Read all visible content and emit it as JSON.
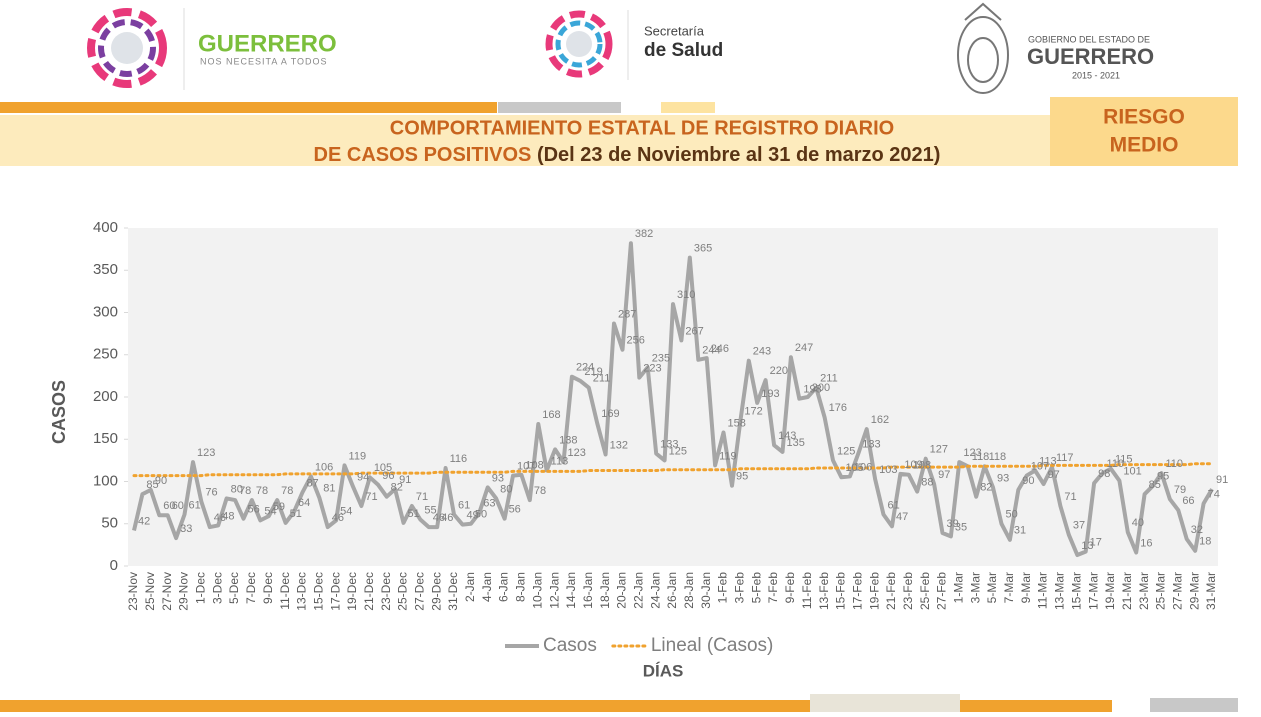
{
  "header": {
    "left_name": "GUERRERO",
    "left_slogan": "NOS NECESITA A TODOS",
    "center_line1": "Secretaría",
    "center_line2": "de Salud",
    "right_line1": "GOBIERNO DEL ESTADO DE",
    "right_line2": "GUERRERO",
    "right_years": "2015 - 2021"
  },
  "banner": {
    "title_line1": "COMPORTAMIENTO ESTATAL DE REGISTRO DIARIO",
    "title_line2": "DE CASOS POSITIVOS",
    "title_range": "(Del 23 de Noviembre al 31 de marzo 2021)",
    "badge_line1": "RIESGO",
    "badge_line2": "MEDIO"
  },
  "chart_data": {
    "type": "line",
    "y_label": "CASOS",
    "x_label": "DÍAS",
    "ylim": [
      0,
      400
    ],
    "yticks": [
      0,
      50,
      100,
      150,
      200,
      250,
      300,
      350,
      400
    ],
    "categories": [
      "23-Nov",
      null,
      "25-Nov",
      null,
      "27-Nov",
      null,
      "29-Nov",
      null,
      "1-Dec",
      null,
      "3-Dec",
      null,
      "5-Dec",
      null,
      "7-Dec",
      null,
      "9-Dec",
      null,
      "11-Dec",
      null,
      "13-Dec",
      null,
      "15-Dec",
      null,
      "17-Dec",
      null,
      "19-Dec",
      null,
      "21-Dec",
      null,
      "23-Dec",
      null,
      "25-Dec",
      null,
      "27-Dec",
      null,
      "29-Dec",
      null,
      "31-Dec",
      null,
      "2-Jan",
      null,
      "4-Jan",
      null,
      "6-Jan",
      null,
      "8-Jan",
      null,
      "10-Jan",
      null,
      "12-Jan",
      null,
      "14-Jan",
      null,
      "16-Jan",
      null,
      "18-Jan",
      null,
      "20-Jan",
      null,
      "22-Jan",
      null,
      "24-Jan",
      null,
      "26-Jan",
      null,
      "28-Jan",
      null,
      "30-Jan",
      null,
      "1-Feb",
      null,
      "3-Feb",
      null,
      "5-Feb",
      null,
      "7-Feb",
      null,
      "9-Feb",
      null,
      "11-Feb",
      null,
      "13-Feb",
      null,
      "15-Feb",
      null,
      "17-Feb",
      null,
      "19-Feb",
      null,
      "21-Feb",
      null,
      "23-Feb",
      null,
      "25-Feb",
      null,
      "27-Feb",
      null,
      "1-Mar",
      null,
      "3-Mar",
      null,
      "5-Mar",
      null,
      "7-Mar",
      null,
      "9-Mar",
      null,
      "11-Mar",
      null,
      "13-Mar",
      null,
      "15-Mar",
      null,
      "17-Mar",
      null,
      "19-Mar",
      null,
      "21-Mar",
      null,
      "23-Mar",
      null,
      "25-Mar",
      null,
      "27-Mar",
      null,
      "29-Mar",
      null,
      "31-Mar"
    ],
    "series": [
      {
        "name": "Casos",
        "color": "#a6a6a6",
        "style": "solid",
        "data_labels": true,
        "values": [
          42,
          85,
          90,
          60,
          60,
          33,
          61,
          123,
          76,
          46,
          48,
          80,
          78,
          56,
          78,
          54,
          59,
          78,
          51,
          64,
          87,
          106,
          81,
          46,
          54,
          119,
          94,
          71,
          105,
          96,
          82,
          91,
          51,
          71,
          55,
          46,
          46,
          116,
          61,
          49,
          50,
          63,
          93,
          80,
          56,
          107,
          108,
          78,
          168,
          113,
          138,
          123,
          224,
          219,
          211,
          169,
          132,
          287,
          256,
          382,
          223,
          235,
          133,
          125,
          310,
          267,
          365,
          244,
          246,
          119,
          158,
          95,
          172,
          243,
          193,
          220,
          143,
          135,
          247,
          198,
          200,
          211,
          176,
          125,
          105,
          106,
          133,
          162,
          103,
          61,
          47,
          109,
          108,
          88,
          127,
          97,
          39,
          35,
          123,
          118,
          82,
          118,
          93,
          50,
          31,
          90,
          107,
          113,
          97,
          117,
          71,
          37,
          13,
          17,
          98,
          110,
          115,
          101,
          40,
          16,
          85,
          95,
          110,
          79,
          66,
          32,
          18,
          74,
          91
        ]
      },
      {
        "name": "Lineal (Casos)",
        "color": "#f0a22e",
        "style": "dotted",
        "data_labels": false,
        "values": [
          107,
          107,
          107,
          107,
          107,
          107,
          107,
          107,
          107,
          108,
          108,
          108,
          108,
          108,
          108,
          108,
          108,
          108,
          109,
          109,
          109,
          109,
          109,
          109,
          109,
          109,
          109,
          110,
          110,
          110,
          110,
          110,
          110,
          110,
          110,
          110,
          111,
          111,
          111,
          111,
          111,
          111,
          111,
          111,
          111,
          112,
          112,
          112,
          112,
          112,
          112,
          112,
          112,
          112,
          113,
          113,
          113,
          113,
          113,
          113,
          113,
          113,
          113,
          114,
          114,
          114,
          114,
          114,
          114,
          114,
          114,
          114,
          115,
          115,
          115,
          115,
          115,
          115,
          115,
          115,
          115,
          116,
          116,
          116,
          116,
          116,
          116,
          116,
          116,
          116,
          117,
          117,
          117,
          117,
          117,
          117,
          117,
          117,
          117,
          118,
          118,
          118,
          118,
          118,
          118,
          118,
          118,
          118,
          119,
          119,
          119,
          119,
          119,
          119,
          119,
          119,
          119,
          120,
          120,
          120,
          120,
          120,
          120,
          120,
          120,
          120,
          121,
          121,
          121
        ]
      }
    ]
  }
}
